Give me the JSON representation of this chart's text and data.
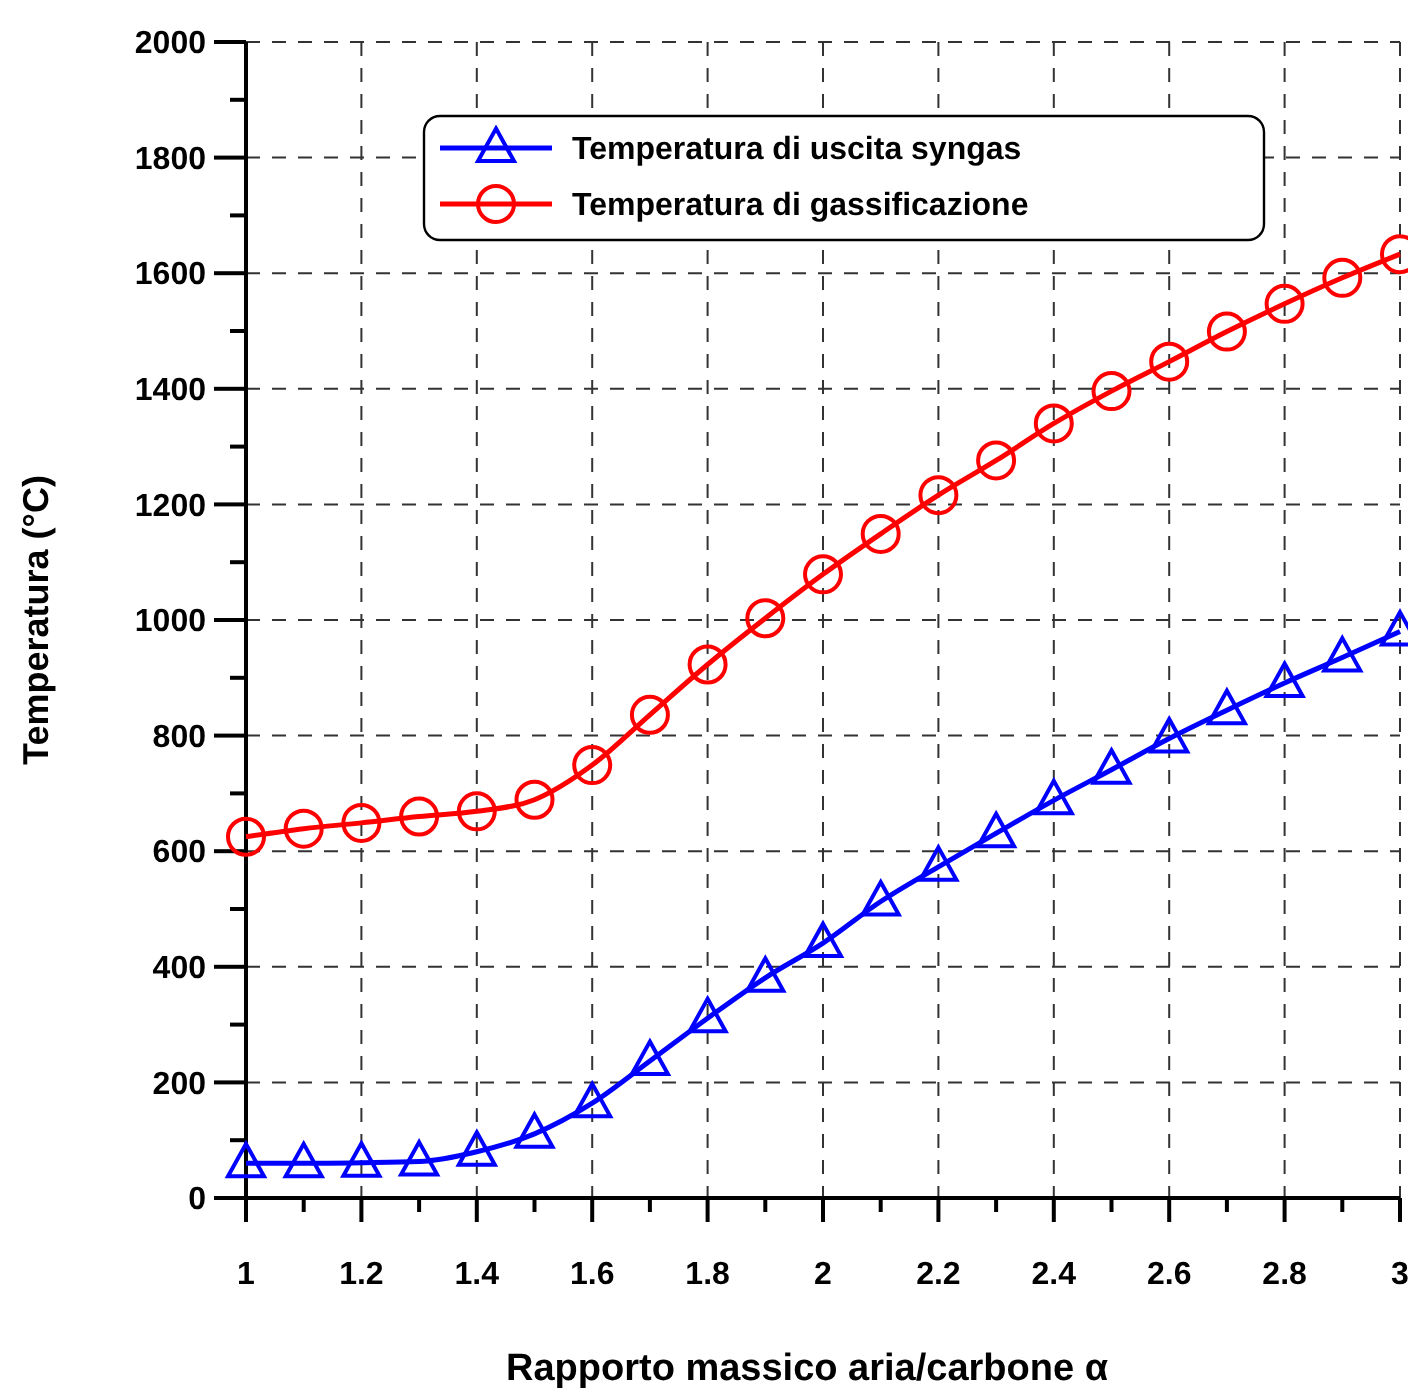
{
  "chart_data": {
    "type": "line",
    "xlabel": "Rapporto massico aria/carbone α",
    "ylabel": "Temperatura (°C)",
    "x": [
      1,
      1.1,
      1.2,
      1.3,
      1.4,
      1.5,
      1.6,
      1.7,
      1.8,
      1.9,
      2,
      2.1,
      2.2,
      2.3,
      2.4,
      2.5,
      2.6,
      2.7,
      2.8,
      2.9,
      3
    ],
    "series": [
      {
        "name": "Temperatura di uscita syngas",
        "color": "#0000ff",
        "marker": "triangle",
        "values": [
          60,
          60,
          61,
          63,
          80,
          111,
          164,
          237,
          311,
          381,
          441,
          513,
          573,
          631,
          688,
          741,
          795,
          844,
          891,
          935,
          980
        ]
      },
      {
        "name": "Temperatura di gassificazione",
        "color": "#ff0000",
        "marker": "circle",
        "values": [
          625,
          639,
          649,
          660,
          669,
          689,
          749,
          836,
          923,
          1003,
          1079,
          1149,
          1216,
          1276,
          1340,
          1396,
          1447,
          1499,
          1547,
          1592,
          1633
        ]
      }
    ],
    "xlim": [
      1,
      3
    ],
    "xticks": [
      1,
      {
        "value": 1.1,
        "label": null
      },
      1.2,
      {
        "value": 1.3,
        "label": null
      },
      1.4,
      {
        "value": 1.5,
        "label": null
      },
      1.6,
      {
        "value": 1.7,
        "label": null
      },
      1.8,
      {
        "value": 1.9,
        "label": null
      },
      2,
      {
        "value": 2.1,
        "label": null
      },
      2.2,
      {
        "value": 2.3,
        "label": null
      },
      2.4,
      {
        "value": 2.5,
        "label": null
      },
      2.6,
      {
        "value": 2.7,
        "label": null
      },
      2.8,
      {
        "value": 2.9,
        "label": null
      },
      3
    ],
    "ylim": [
      0,
      2000
    ],
    "yticks": [
      0,
      {
        "value": 100,
        "label": null
      },
      200,
      {
        "value": 300,
        "label": null
      },
      400,
      {
        "value": 500,
        "label": null
      },
      600,
      {
        "value": 700,
        "label": null
      },
      800,
      {
        "value": 900,
        "label": null
      },
      1000,
      {
        "value": 1100,
        "label": null
      },
      1200,
      {
        "value": 1300,
        "label": null
      },
      1400,
      {
        "value": 1500,
        "label": null
      },
      1600,
      {
        "value": 1700,
        "label": null
      },
      1800,
      {
        "value": 1900,
        "label": null
      },
      2000
    ],
    "grid": true,
    "legend": "top",
    "line_style": "solid"
  }
}
